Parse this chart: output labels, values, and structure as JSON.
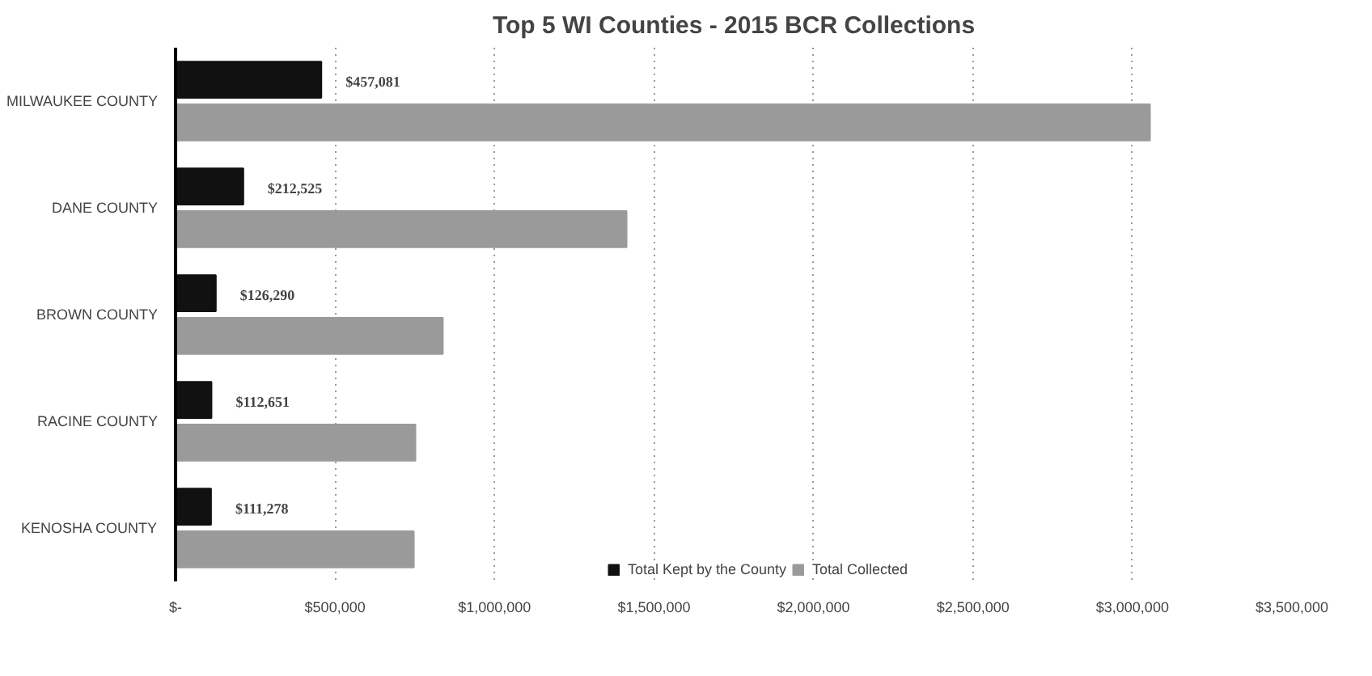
{
  "chart_data": {
    "type": "bar",
    "orientation": "horizontal",
    "title": "Top 5 WI Counties - 2015 BCR Collections",
    "categories": [
      "MILWAUKEE COUNTY",
      "DANE COUNTY",
      "BROWN COUNTY",
      "RACINE COUNTY",
      "KENOSHA COUNTY"
    ],
    "series": [
      {
        "name": "Total Kept by the County",
        "color": "#111111",
        "values": [
          457081,
          212525,
          126290,
          112651,
          111278
        ],
        "value_labels": [
          "$457,081",
          "$212,525",
          "$126,290",
          "$112,651",
          "$111,278"
        ]
      },
      {
        "name": "Total Collected",
        "color": "#9a9a9a",
        "values": [
          3055000,
          1414000,
          838000,
          752000,
          747000
        ]
      }
    ],
    "xlim": [
      0,
      3500000
    ],
    "xticks": [
      {
        "value": 0,
        "label": "$-"
      },
      {
        "value": 500000,
        "label": "$500,000"
      },
      {
        "value": 1000000,
        "label": "$1,000,000"
      },
      {
        "value": 1500000,
        "label": "$1,500,000"
      },
      {
        "value": 2000000,
        "label": "$2,000,000"
      },
      {
        "value": 2500000,
        "label": "$2,500,000"
      },
      {
        "value": 3000000,
        "label": "$3,000,000"
      },
      {
        "value": 3500000,
        "label": "$3,500,000"
      }
    ],
    "grid": "x",
    "legend": "bottom"
  }
}
